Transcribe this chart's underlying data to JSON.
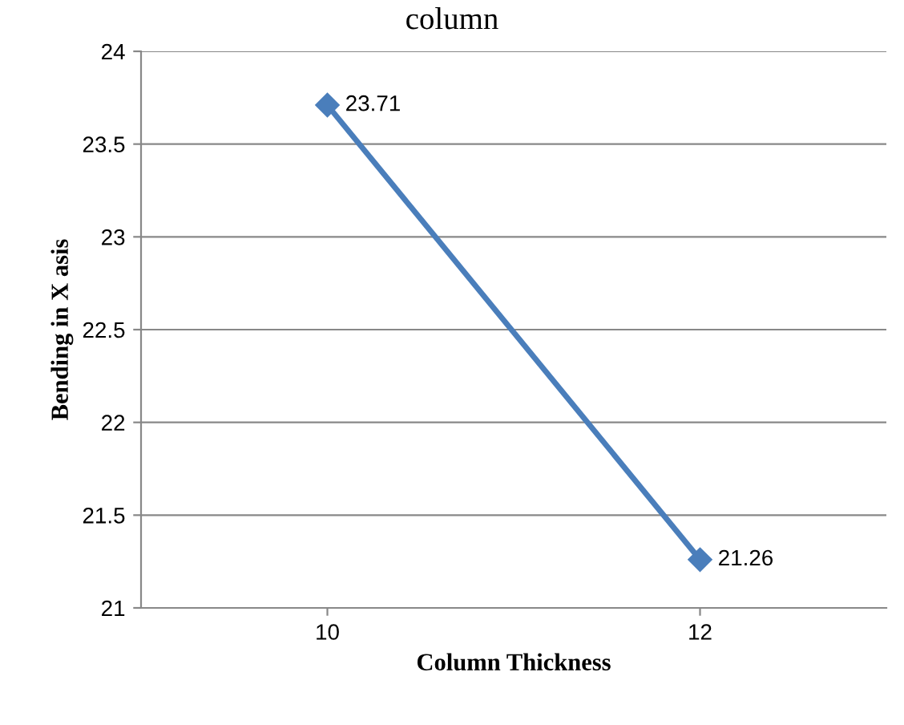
{
  "chart_data": {
    "type": "line",
    "title": "column",
    "xlabel": "Column Thickness",
    "ylabel": "Bending in X asis",
    "categories": [
      "10",
      "12"
    ],
    "series": [
      {
        "color": "#4a7ebb",
        "values": [
          23.71,
          21.26
        ]
      }
    ],
    "ylim": [
      21,
      24
    ],
    "yticks": [
      21,
      21.5,
      22,
      22.5,
      23,
      23.5,
      24
    ],
    "grid": "y",
    "marker": "diamond",
    "line_style": "solid",
    "data_labels": true,
    "legend": false
  }
}
